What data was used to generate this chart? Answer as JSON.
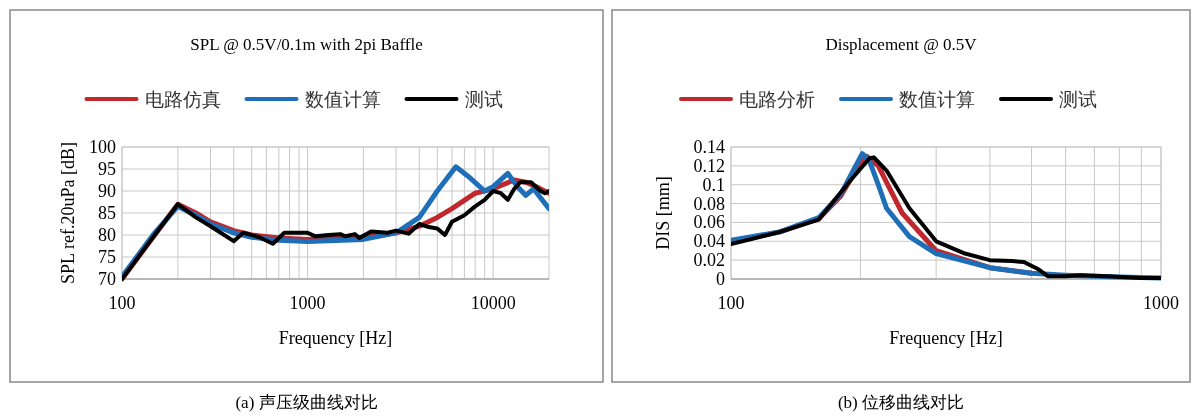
{
  "chart_data": [
    {
      "type": "line",
      "title": "SPL @ 0.5V/0.1m with 2pi Baffle",
      "xlabel": "Frequency [Hz]",
      "ylabel": "SPL ref.20uPa [dB]",
      "log": "x",
      "grid": true,
      "legend": "top",
      "xlim": [
        100,
        20000
      ],
      "ylim": [
        70,
        100
      ],
      "xticks": [
        100,
        {
          "value": 200,
          "label": null
        },
        {
          "value": 300,
          "label": null
        },
        {
          "value": 400,
          "label": null
        },
        {
          "value": 500,
          "label": null
        },
        {
          "value": 600,
          "label": null
        },
        {
          "value": 700,
          "label": null
        },
        {
          "value": 800,
          "label": null
        },
        {
          "value": 900,
          "label": null
        },
        1000,
        {
          "value": 2000,
          "label": null
        },
        {
          "value": 3000,
          "label": null
        },
        {
          "value": 4000,
          "label": null
        },
        {
          "value": 5000,
          "label": null
        },
        {
          "value": 6000,
          "label": null
        },
        {
          "value": 7000,
          "label": null
        },
        {
          "value": 8000,
          "label": null
        },
        {
          "value": 9000,
          "label": null
        },
        10000
      ],
      "yticks": [
        70,
        75,
        80,
        85,
        90,
        95,
        100
      ],
      "annotations": [
        "(a)  声压级曲线对比"
      ],
      "series": [
        {
          "name": "电路仿真",
          "color": "#c0282d",
          "x": [
            100,
            150,
            200,
            250,
            300,
            400,
            500,
            700,
            1000,
            2000,
            3000,
            4000,
            5000,
            6000,
            8000,
            10000,
            13000,
            15000,
            17000,
            20000
          ],
          "values": [
            70,
            80,
            87,
            85,
            83,
            81,
            80,
            79.3,
            79,
            79.5,
            80.5,
            82,
            84,
            86,
            89.5,
            90.5,
            92.5,
            92,
            91,
            89.5
          ]
        },
        {
          "name": "数值计算",
          "color": "#1f6fb8",
          "x": [
            100,
            150,
            200,
            250,
            300,
            400,
            500,
            700,
            1000,
            2000,
            3000,
            4000,
            5000,
            6300,
            7500,
            9000,
            10000,
            12000,
            13500,
            15000,
            16500,
            20000
          ],
          "values": [
            70.5,
            80.5,
            86.5,
            84.5,
            82.5,
            80.5,
            79.5,
            78.8,
            78.5,
            79,
            80.5,
            84,
            90,
            95.5,
            93,
            90,
            91,
            94,
            91,
            89,
            90.5,
            86
          ]
        },
        {
          "name": "测试",
          "color": "#000000",
          "x": [
            100,
            150,
            200,
            250,
            300,
            400,
            450,
            550,
            650,
            750,
            1000,
            1100,
            1300,
            1500,
            1600,
            1800,
            1900,
            2200,
            2700,
            3000,
            3500,
            4000,
            4500,
            5000,
            5500,
            6000,
            7000,
            8000,
            9000,
            10000,
            11000,
            12000,
            13000,
            14000,
            16000,
            18000,
            19000,
            20000
          ],
          "values": [
            70,
            80,
            87,
            84,
            82,
            78.6,
            80.5,
            79.5,
            78,
            80.5,
            80.5,
            79.7,
            80,
            80.2,
            79.7,
            80.2,
            79.3,
            80.8,
            80.5,
            81,
            80.3,
            82.5,
            81.8,
            81.5,
            80,
            83,
            84.5,
            86.5,
            88,
            90,
            89.5,
            88,
            90.5,
            92,
            92,
            90,
            89.5,
            90
          ]
        }
      ]
    },
    {
      "type": "line",
      "title": "Displacement @ 0.5V",
      "xlabel": "Frequency [Hz]",
      "ylabel": "DIS [mm]",
      "log": "x",
      "grid": true,
      "legend": "top",
      "xlim": [
        100,
        1000
      ],
      "ylim": [
        0,
        0.14
      ],
      "xticks": [
        100,
        {
          "value": 200,
          "label": null
        },
        {
          "value": 300,
          "label": null
        },
        {
          "value": 400,
          "label": null
        },
        {
          "value": 500,
          "label": null
        },
        {
          "value": 600,
          "label": null
        },
        {
          "value": 700,
          "label": null
        },
        {
          "value": 800,
          "label": null
        },
        {
          "value": 900,
          "label": null
        },
        1000
      ],
      "yticks": [
        0,
        0.02,
        0.04,
        0.06,
        0.08,
        0.1,
        0.12,
        0.14
      ],
      "annotations": [
        "(b)  位移曲线对比"
      ],
      "series": [
        {
          "name": "电路分析",
          "color": "#c0282d",
          "x": [
            100,
            130,
            160,
            180,
            195,
            207,
            220,
            250,
            300,
            400,
            500
          ],
          "values": [
            0.039,
            0.05,
            0.064,
            0.088,
            0.115,
            0.13,
            0.12,
            0.07,
            0.03,
            0.012,
            0.006
          ]
        },
        {
          "name": "数值计算",
          "color": "#1f6fb8",
          "x": [
            100,
            130,
            160,
            180,
            195,
            202,
            210,
            220,
            230,
            260,
            300,
            400,
            500,
            600,
            800,
            1000
          ],
          "values": [
            0.041,
            0.05,
            0.065,
            0.09,
            0.12,
            0.133,
            0.125,
            0.1,
            0.075,
            0.045,
            0.027,
            0.012,
            0.006,
            0.004,
            0.002,
            0.001
          ]
        },
        {
          "name": "测试",
          "color": "#000000",
          "x": [
            100,
            130,
            160,
            190,
            210,
            215,
            230,
            260,
            300,
            350,
            400,
            450,
            480,
            520,
            545,
            600,
            650,
            750,
            900,
            1000
          ],
          "values": [
            0.037,
            0.05,
            0.063,
            0.105,
            0.128,
            0.129,
            0.115,
            0.075,
            0.04,
            0.027,
            0.02,
            0.019,
            0.018,
            0.01,
            0.003,
            0.003,
            0.004,
            0.003,
            0.001,
            0.001
          ]
        }
      ]
    }
  ]
}
